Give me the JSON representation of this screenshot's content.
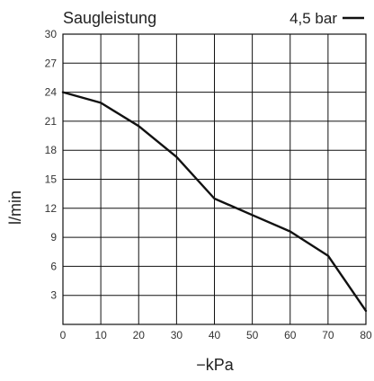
{
  "chart_data": {
    "type": "line",
    "title": "Saugleistung",
    "xlabel": "−kPa",
    "ylabel": "l/min",
    "xlim": [
      0,
      80
    ],
    "ylim": [
      0,
      30
    ],
    "xticks": [
      0,
      10,
      20,
      30,
      40,
      50,
      60,
      70,
      80
    ],
    "yticks": [
      3,
      6,
      9,
      12,
      15,
      18,
      21,
      24,
      27,
      30
    ],
    "grid": true,
    "legend_position": "top-right",
    "series": [
      {
        "name": "4,5 bar",
        "x": [
          0,
          10,
          20,
          30,
          40,
          50,
          60,
          70,
          80
        ],
        "y": [
          24,
          22.9,
          20.5,
          17.3,
          13,
          11.3,
          9.6,
          7.1,
          1.4
        ]
      }
    ]
  }
}
